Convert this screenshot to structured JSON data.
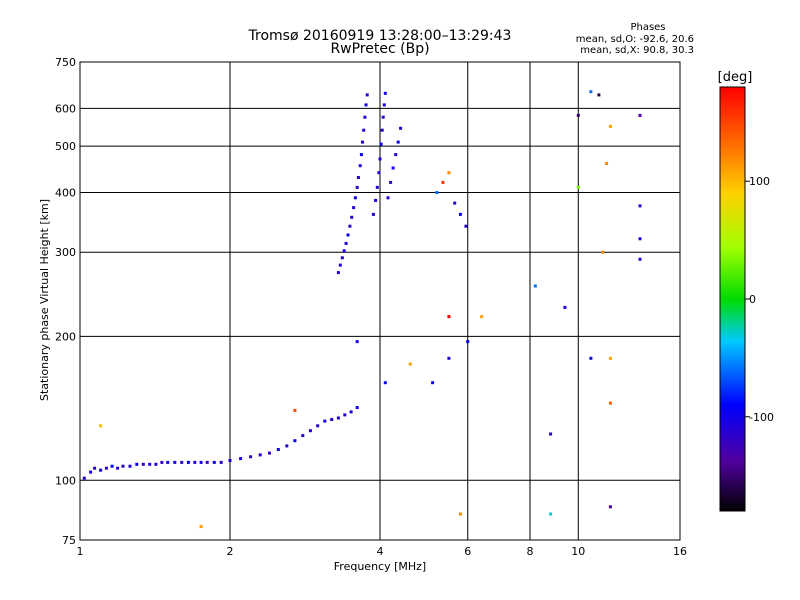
{
  "chart_data": {
    "type": "scatter",
    "title": "Tromsø 20160919 13:28:00–13:29:43",
    "subtitle": "RwPretec (Bp)",
    "xlabel": "Frequency [MHz]",
    "ylabel": "Stationary phase Virtual Height [km]",
    "x_scale": "log",
    "y_scale": "log",
    "xlim": [
      1,
      16
    ],
    "ylim": [
      75,
      750
    ],
    "x_ticks": [
      1,
      2,
      4,
      6,
      8,
      10,
      16
    ],
    "x_tick_labels": [
      "1",
      "2",
      "4",
      "6",
      "8",
      "10",
      "16"
    ],
    "y_ticks": [
      75,
      100,
      200,
      300,
      400,
      500,
      600,
      750
    ],
    "y_tick_labels": [
      "75",
      "100",
      "200",
      "300",
      "400",
      "500",
      "600",
      "750"
    ],
    "grid_x": [
      2,
      4,
      6,
      8,
      10
    ],
    "grid_y": [
      100,
      200,
      300,
      400,
      500,
      600
    ],
    "legend": {
      "heading": "Phases",
      "line1": "mean, sd,O: -92.6, 20.6",
      "line2": "mean, sd,X:  90.8, 30.3"
    },
    "colorbar": {
      "label": "[deg]",
      "range": [
        -180,
        180
      ],
      "ticks": [
        100,
        0,
        -100
      ],
      "tick_labels": [
        "100",
        "0",
        "-100"
      ]
    },
    "series": [
      {
        "values": [
          [
            1.02,
            101,
            -110
          ],
          [
            1.05,
            104,
            -105
          ],
          [
            1.07,
            106,
            -115
          ],
          [
            1.1,
            105,
            -100
          ],
          [
            1.13,
            106,
            -120
          ],
          [
            1.16,
            107,
            -90
          ],
          [
            1.19,
            106,
            -110
          ],
          [
            1.22,
            107,
            -115
          ],
          [
            1.26,
            107,
            -105
          ],
          [
            1.3,
            108,
            -95
          ],
          [
            1.34,
            108,
            -115
          ],
          [
            1.38,
            108,
            -100
          ],
          [
            1.42,
            108,
            -110
          ],
          [
            1.46,
            109,
            -120
          ],
          [
            1.5,
            109,
            -100
          ],
          [
            1.55,
            109,
            -105
          ],
          [
            1.6,
            109,
            -115
          ],
          [
            1.65,
            109,
            -95
          ],
          [
            1.7,
            109,
            -110
          ],
          [
            1.75,
            109,
            -105
          ],
          [
            1.8,
            109,
            -120
          ],
          [
            1.86,
            109,
            -100
          ],
          [
            1.92,
            109,
            -115
          ],
          [
            2.0,
            110,
            -110
          ],
          [
            2.1,
            111,
            -100
          ],
          [
            2.2,
            112,
            -115
          ],
          [
            2.3,
            113,
            -105
          ],
          [
            2.4,
            114,
            -120
          ],
          [
            2.5,
            116,
            -100
          ],
          [
            2.6,
            118,
            -110
          ],
          [
            2.7,
            121,
            -95
          ],
          [
            2.8,
            124,
            -115
          ],
          [
            2.9,
            127,
            -105
          ],
          [
            3.0,
            130,
            -110
          ],
          [
            3.1,
            133,
            -100
          ],
          [
            3.2,
            134,
            -115
          ],
          [
            3.3,
            135,
            -105
          ],
          [
            3.4,
            137,
            -110
          ],
          [
            3.5,
            139,
            -100
          ],
          [
            3.6,
            142,
            -95
          ],
          [
            3.3,
            272,
            -110
          ],
          [
            3.33,
            282,
            -105
          ],
          [
            3.36,
            292,
            -115
          ],
          [
            3.39,
            302,
            -100
          ],
          [
            3.42,
            313,
            -110
          ],
          [
            3.45,
            326,
            -95
          ],
          [
            3.48,
            340,
            -115
          ],
          [
            3.51,
            355,
            -105
          ],
          [
            3.54,
            372,
            -110
          ],
          [
            3.57,
            390,
            -100
          ],
          [
            3.6,
            410,
            -115
          ],
          [
            3.62,
            430,
            -105
          ],
          [
            3.65,
            455,
            -110
          ],
          [
            3.67,
            480,
            -95
          ],
          [
            3.69,
            510,
            -115
          ],
          [
            3.71,
            540,
            -105
          ],
          [
            3.73,
            575,
            -110
          ],
          [
            3.75,
            610,
            -100
          ],
          [
            3.77,
            640,
            -115
          ],
          [
            3.88,
            360,
            -110
          ],
          [
            3.92,
            385,
            -100
          ],
          [
            3.95,
            410,
            -115
          ],
          [
            3.98,
            440,
            -105
          ],
          [
            4.0,
            470,
            -110
          ],
          [
            4.02,
            505,
            -95
          ],
          [
            4.04,
            540,
            -115
          ],
          [
            4.06,
            575,
            -105
          ],
          [
            4.08,
            610,
            -110
          ],
          [
            4.1,
            645,
            -100
          ],
          [
            4.15,
            390,
            -105
          ],
          [
            4.2,
            420,
            -115
          ],
          [
            4.25,
            450,
            -100
          ],
          [
            4.3,
            480,
            -110
          ],
          [
            4.35,
            510,
            -95
          ],
          [
            4.4,
            545,
            -115
          ],
          [
            5.2,
            400,
            -60
          ],
          [
            5.35,
            420,
            160
          ],
          [
            5.5,
            440,
            120
          ],
          [
            5.65,
            380,
            -110
          ],
          [
            5.8,
            360,
            -90
          ],
          [
            5.95,
            340,
            -115
          ],
          [
            3.6,
            195,
            -100
          ],
          [
            4.1,
            160,
            -95
          ],
          [
            4.6,
            175,
            110
          ],
          [
            5.1,
            160,
            -100
          ],
          [
            5.5,
            180,
            -110
          ],
          [
            6.0,
            195,
            -90
          ],
          [
            1.1,
            130,
            100
          ],
          [
            1.75,
            80,
            110
          ],
          [
            2.7,
            140,
            150
          ],
          [
            5.5,
            220,
            180
          ],
          [
            6.4,
            220,
            110
          ],
          [
            5.8,
            85,
            120
          ],
          [
            8.2,
            255,
            -60
          ],
          [
            8.8,
            125,
            -110
          ],
          [
            8.8,
            85,
            -30
          ],
          [
            9.4,
            230,
            -110
          ],
          [
            10.0,
            580,
            -150
          ],
          [
            10.0,
            410,
            30
          ],
          [
            10.6,
            650,
            -60
          ],
          [
            10.6,
            180,
            -100
          ],
          [
            11.0,
            640,
            -160
          ],
          [
            11.2,
            300,
            120
          ],
          [
            11.4,
            460,
            120
          ],
          [
            11.6,
            550,
            110
          ],
          [
            11.6,
            180,
            110
          ],
          [
            11.6,
            145,
            140
          ],
          [
            11.6,
            88,
            -130
          ],
          [
            13.3,
            580,
            -130
          ],
          [
            13.3,
            375,
            -120
          ],
          [
            13.3,
            320,
            -110
          ],
          [
            13.3,
            290,
            -120
          ]
        ]
      }
    ]
  }
}
